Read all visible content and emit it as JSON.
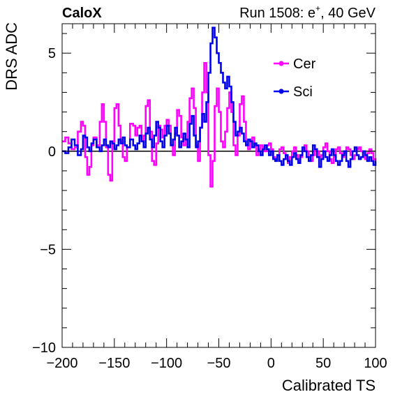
{
  "chart_data": {
    "type": "line",
    "top_left_label": "CaloX",
    "top_right_label": "Run 1508: e",
    "top_right_sup": "+",
    "top_right_suffix": ", 40 GeV",
    "xlabel": "Calibrated TS",
    "ylabel": "DRS ADC",
    "xlim": [
      -200,
      100
    ],
    "ylim": [
      -10,
      6.5
    ],
    "xticks": [
      -200,
      -150,
      -100,
      -50,
      0,
      50,
      100
    ],
    "xtick_labels": [
      "−200",
      "−150",
      "−100",
      "−50",
      "0",
      "50",
      "100"
    ],
    "yticks": [
      -10,
      -5,
      0,
      5
    ],
    "ytick_labels": [
      "−10",
      "−5",
      "0",
      "5"
    ],
    "baseline": 0,
    "legend_placement": "top-right",
    "series": [
      {
        "name": "Cer",
        "color": "#ff00ff",
        "x": [
          -200,
          -197,
          -194,
          -191,
          -188,
          -185,
          -182,
          -180,
          -178,
          -176,
          -174,
          -172,
          -170,
          -167,
          -164,
          -162,
          -160,
          -158,
          -156,
          -154,
          -152,
          -150,
          -148,
          -146,
          -144,
          -142,
          -140,
          -138,
          -135,
          -132,
          -130,
          -128,
          -126,
          -124,
          -122,
          -120,
          -118,
          -116,
          -114,
          -112,
          -110,
          -108,
          -106,
          -104,
          -102,
          -100,
          -98,
          -96,
          -94,
          -92,
          -90,
          -88,
          -86,
          -84,
          -82,
          -80,
          -78,
          -76,
          -74,
          -72,
          -70,
          -68,
          -66,
          -64,
          -62,
          -60,
          -58,
          -56,
          -54,
          -52,
          -50,
          -48,
          -46,
          -44,
          -42,
          -40,
          -38,
          -36,
          -34,
          -32,
          -30,
          -28,
          -26,
          -24,
          -22,
          -20,
          -18,
          -16,
          -14,
          -12,
          -10,
          -8,
          -6,
          -4,
          -2,
          0,
          2,
          4,
          6,
          8,
          10,
          12,
          14,
          16,
          18,
          20,
          22,
          24,
          26,
          28,
          30,
          32,
          34,
          36,
          38,
          40,
          42,
          44,
          46,
          48,
          50,
          52,
          54,
          56,
          58,
          60,
          62,
          64,
          66,
          68,
          70,
          72,
          74,
          76,
          78,
          80,
          82,
          84,
          86,
          88,
          90,
          92,
          94,
          96,
          98,
          100
        ],
        "y": [
          0.5,
          0.7,
          0.4,
          0.1,
          0.2,
          1.0,
          1.5,
          1.3,
          -0.3,
          -1.2,
          -0.8,
          0.3,
          0.7,
          0.3,
          1.5,
          2.4,
          1.5,
          0.2,
          -1.2,
          -1.5,
          0.5,
          2.2,
          2.4,
          1.3,
          0.5,
          -0.3,
          -0.5,
          0.2,
          1.4,
          1.3,
          0.8,
          1.2,
          1.3,
          0.5,
          0.8,
          2.3,
          2.6,
          1.0,
          -0.5,
          -0.7,
          0.4,
          1.3,
          1.1,
          0.7,
          1.3,
          1.6,
          1.3,
          0.3,
          -0.2,
          0.9,
          2.1,
          1.8,
          0.7,
          0.3,
          0.6,
          1.5,
          2.7,
          3.2,
          2.2,
          0.3,
          -0.5,
          1.2,
          3.0,
          4.5,
          3.0,
          -0.2,
          -1.8,
          -0.5,
          2.3,
          3.2,
          2.0,
          0.5,
          0.2,
          1.0,
          2.2,
          3.0,
          2.0,
          0.3,
          -0.2,
          0.8,
          2.4,
          2.8,
          1.5,
          0.3,
          0.1,
          0.5,
          0.7,
          0.3,
          -0.2,
          0.1,
          0.3,
          0.2,
          0.0,
          0.3,
          0.4,
          0.1,
          -0.3,
          -0.4,
          -0.2,
          0.1,
          0.2,
          -0.1,
          -0.4,
          -0.6,
          -0.3,
          0.0,
          0.2,
          -0.2,
          -0.5,
          -0.3,
          0.1,
          0.3,
          0.0,
          -0.3,
          -0.5,
          -0.2,
          0.1,
          0.0,
          -0.3,
          -0.2,
          0.2,
          0.4,
          0.0,
          -0.4,
          -0.6,
          -0.3,
          0.1,
          0.2,
          -0.1,
          -0.3,
          -0.1,
          0.2,
          0.1,
          -0.2,
          -0.4,
          -0.2,
          0.1,
          0.2,
          0.0,
          -0.3,
          -0.4,
          -0.1,
          0.1,
          -0.1,
          -0.4,
          -0.5
        ]
      },
      {
        "name": "Sci",
        "color": "#0000ee",
        "x": [
          -200,
          -197,
          -194,
          -191,
          -188,
          -185,
          -182,
          -180,
          -178,
          -176,
          -174,
          -172,
          -170,
          -167,
          -164,
          -162,
          -160,
          -158,
          -156,
          -154,
          -152,
          -150,
          -148,
          -146,
          -144,
          -142,
          -140,
          -138,
          -135,
          -132,
          -130,
          -128,
          -126,
          -124,
          -122,
          -120,
          -118,
          -116,
          -114,
          -112,
          -110,
          -108,
          -106,
          -104,
          -102,
          -100,
          -98,
          -96,
          -94,
          -92,
          -90,
          -88,
          -86,
          -84,
          -82,
          -80,
          -78,
          -76,
          -74,
          -72,
          -70,
          -68,
          -66,
          -64,
          -62,
          -60,
          -58,
          -56,
          -54,
          -52,
          -50,
          -48,
          -46,
          -44,
          -42,
          -40,
          -38,
          -36,
          -34,
          -32,
          -30,
          -28,
          -26,
          -24,
          -22,
          -20,
          -18,
          -16,
          -14,
          -12,
          -10,
          -8,
          -6,
          -4,
          -2,
          0,
          2,
          4,
          6,
          8,
          10,
          12,
          14,
          16,
          18,
          20,
          22,
          24,
          26,
          28,
          30,
          32,
          34,
          36,
          38,
          40,
          42,
          44,
          46,
          48,
          50,
          52,
          54,
          56,
          58,
          60,
          62,
          64,
          66,
          68,
          70,
          72,
          74,
          76,
          78,
          80,
          82,
          84,
          86,
          88,
          90,
          92,
          94,
          96,
          98,
          100
        ],
        "y": [
          0.0,
          -0.1,
          0.2,
          0.6,
          0.3,
          -0.2,
          0.1,
          0.8,
          0.7,
          0.2,
          0.0,
          0.4,
          0.6,
          0.2,
          0.0,
          0.3,
          0.6,
          0.3,
          0.2,
          0.5,
          0.4,
          0.1,
          0.3,
          0.6,
          0.4,
          0.7,
          0.3,
          0.2,
          0.6,
          0.3,
          0.1,
          0.4,
          0.8,
          0.5,
          0.2,
          0.9,
          1.2,
          0.6,
          0.2,
          0.8,
          1.5,
          1.2,
          0.5,
          0.2,
          0.8,
          1.3,
          0.9,
          0.3,
          0.6,
          1.2,
          0.8,
          0.2,
          0.5,
          0.9,
          0.6,
          0.2,
          1.4,
          1.8,
          0.8,
          0.2,
          0.5,
          1.2,
          1.9,
          1.5,
          2.5,
          4.0,
          5.5,
          6.3,
          5.8,
          5.0,
          4.5,
          4.0,
          3.5,
          3.2,
          3.8,
          3.3,
          2.5,
          1.5,
          0.8,
          1.0,
          1.2,
          0.9,
          0.5,
          0.3,
          0.6,
          0.5,
          0.2,
          0.4,
          0.3,
          0.0,
          -0.2,
          0.1,
          0.3,
          0.1,
          -0.2,
          0.0,
          -0.4,
          -0.5,
          -0.2,
          -0.5,
          -0.7,
          -0.4,
          -0.2,
          -0.5,
          -0.7,
          -0.3,
          -0.1,
          -0.4,
          -0.6,
          -0.2,
          0.2,
          0.0,
          -0.3,
          -0.5,
          -0.2,
          0.3,
          0.1,
          -0.3,
          -0.8,
          -0.4,
          0.0,
          -0.3,
          -0.5,
          -0.2,
          0.1,
          -0.2,
          -0.5,
          -0.7,
          -0.5,
          -0.2,
          0.0,
          -0.5,
          -0.8,
          -0.4,
          0.0,
          0.2,
          -0.2,
          -0.4,
          -0.3,
          0.0,
          -0.2,
          -0.5,
          -0.3,
          -0.5,
          -0.7,
          -0.5
        ]
      }
    ]
  }
}
